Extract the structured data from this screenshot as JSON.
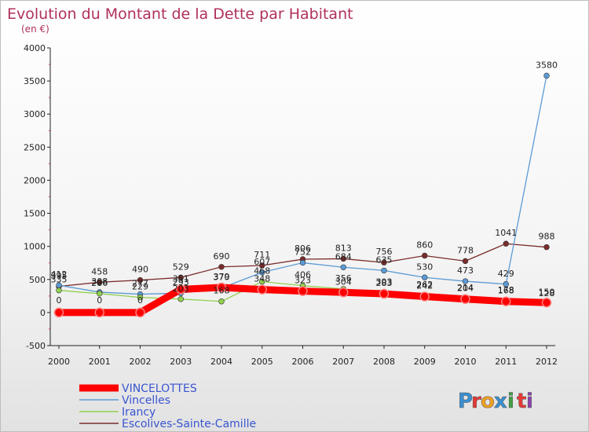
{
  "chart_data": {
    "type": "line",
    "title": "Evolution du Montant de la Dette par Habitant",
    "subtitle": "(en €)",
    "xlabel": "",
    "ylabel": "",
    "x": [
      "2000",
      "2001",
      "2002",
      "2003",
      "2004",
      "2005",
      "2006",
      "2007",
      "2008",
      "2009",
      "2010",
      "2011",
      "2012"
    ],
    "ylim": [
      -500,
      4000
    ],
    "yticks": [
      -500,
      0,
      500,
      1000,
      1500,
      2000,
      2500,
      3000,
      3500,
      4000
    ],
    "series": [
      {
        "name": "VINCELOTTES",
        "color": "#ff0000",
        "values": [
          0,
          0,
          0,
          351,
          379,
          348,
          323,
          304,
          283,
          242,
          204,
          168,
          150
        ]
      },
      {
        "name": "Vincelles",
        "color": "#5b9bd5",
        "values": [
          412,
          308,
          277,
          293,
          370,
          607,
          752,
          684,
          635,
          530,
          473,
          429,
          3580
        ]
      },
      {
        "name": "Irancy",
        "color": "#92d050",
        "values": [
          335,
          286,
          229,
          203,
          168,
          468,
          406,
          356,
          303,
          262,
          214,
          178,
          128
        ]
      },
      {
        "name": "Escolives-Sainte-Camille",
        "color": "#7b2c2c",
        "values": [
          395,
          458,
          490,
          529,
          690,
          711,
          806,
          813,
          756,
          860,
          778,
          1041,
          988
        ]
      }
    ]
  },
  "logo": {
    "letters": [
      "P",
      "r",
      "o",
      "x",
      "i",
      "t",
      "i"
    ],
    "colors": [
      "#3a8fd0",
      "#e53935",
      "#f0a020",
      "#3a8fd0",
      "#43a047",
      "#e53935",
      "#8e44ad"
    ]
  }
}
